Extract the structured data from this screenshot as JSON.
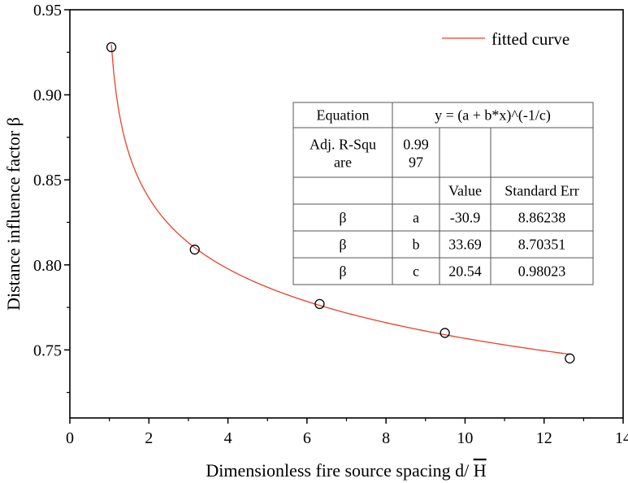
{
  "chart_data": {
    "type": "scatter",
    "title": "",
    "xlabel": "Dimensionless fire source spacing  d/  H",
    "xlabel_main": "Dimensionless fire source spacing  d/ ",
    "xlabel_symbol": "H",
    "ylabel": "Distance influence factor β",
    "xlim": [
      0,
      14
    ],
    "ylim": [
      0.71,
      0.95
    ],
    "xticks": [
      0,
      2,
      4,
      6,
      8,
      10,
      12,
      14
    ],
    "yticks": [
      0.75,
      0.8,
      0.85,
      0.9,
      0.95
    ],
    "xtick_labels": [
      "0",
      "2",
      "4",
      "6",
      "8",
      "10",
      "12",
      "14"
    ],
    "ytick_labels": [
      "0.75",
      "0.80",
      "0.85",
      "0.90",
      "0.95"
    ],
    "grid": false,
    "legend_position": "top-right",
    "points": [
      {
        "x": 1.05,
        "y": 0.928
      },
      {
        "x": 3.16,
        "y": 0.809
      },
      {
        "x": 6.32,
        "y": 0.777
      },
      {
        "x": 9.49,
        "y": 0.76
      },
      {
        "x": 12.65,
        "y": 0.745
      }
    ],
    "fit": {
      "name": "fitted curve",
      "equation": "y = (a + b*x)^(-1/c)",
      "a": -30.9,
      "b": 33.69,
      "c": 20.54,
      "x_range": [
        1.05,
        12.65
      ]
    },
    "colors": {
      "fit_line": "#e8412c",
      "points": "#000000"
    },
    "fit_table": {
      "rows": [
        [
          "Equation",
          "y = (a + b*x)^(-1/c)",
          "",
          ""
        ],
        [
          "Adj. R-Squ|are",
          "0.99|97",
          "",
          ""
        ],
        [
          "",
          "",
          "Value",
          "Standard Err"
        ],
        [
          "β",
          "a",
          "-30.9",
          "8.86238"
        ],
        [
          "β",
          "b",
          "33.69",
          "8.70351"
        ],
        [
          "β",
          "c",
          "20.54",
          "0.98023"
        ]
      ]
    }
  }
}
